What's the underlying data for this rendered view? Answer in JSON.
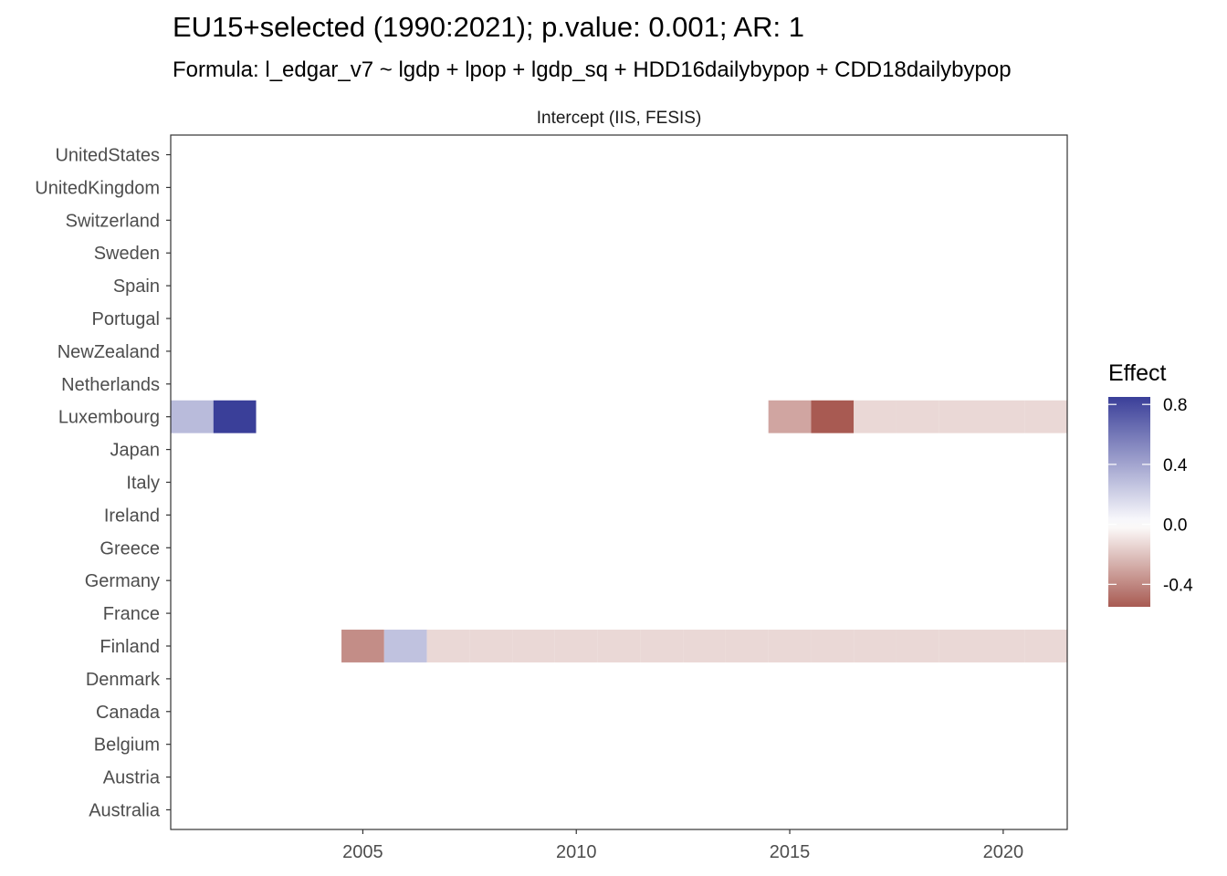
{
  "chart_data": {
    "type": "heatmap",
    "title": "EU15+selected (1990:2021); p.value: 0.001; AR: 1",
    "subtitle": "Formula: l_edgar_v7 ~ lgdp + lpop + lgdp_sq + HDD16dailybypop + CDD18dailybypop",
    "facet_label": "Intercept (IIS, FESIS)",
    "xlabel": "",
    "ylabel": "",
    "xlim": [
      2000.5,
      2021.5
    ],
    "x_ticks": [
      2005,
      2010,
      2015,
      2020
    ],
    "x_tick_labels": [
      "2005",
      "2010",
      "2015",
      "2020"
    ],
    "y_categories": [
      "Australia",
      "Austria",
      "Belgium",
      "Canada",
      "Denmark",
      "Finland",
      "France",
      "Germany",
      "Greece",
      "Ireland",
      "Italy",
      "Japan",
      "Luxembourg",
      "Netherlands",
      "NewZealand",
      "Portugal",
      "Spain",
      "Sweden",
      "Switzerland",
      "UnitedKingdom",
      "UnitedStates"
    ],
    "grid": false,
    "legend": {
      "title": "Effect",
      "placement": "right",
      "ticks": [
        0.8,
        0.4,
        0.0,
        -0.4
      ],
      "tick_labels": [
        "0.8",
        "0.4",
        "0.0",
        "-0.4"
      ],
      "range": [
        -0.55,
        0.85
      ],
      "colors": {
        "high": "#3a3f99",
        "mid": "#ffffff",
        "low": "#a85a52"
      }
    },
    "cells": [
      {
        "country": "Luxembourg",
        "year": 2001,
        "effect": 0.3
      },
      {
        "country": "Luxembourg",
        "year": 2002,
        "effect": 0.85
      },
      {
        "country": "Luxembourg",
        "year": 2015,
        "effect": -0.3
      },
      {
        "country": "Luxembourg",
        "year": 2016,
        "effect": -0.55
      },
      {
        "country": "Luxembourg",
        "year": 2017,
        "effect": -0.13
      },
      {
        "country": "Luxembourg",
        "year": 2018,
        "effect": -0.13
      },
      {
        "country": "Luxembourg",
        "year": 2019,
        "effect": -0.13
      },
      {
        "country": "Luxembourg",
        "year": 2020,
        "effect": -0.13
      },
      {
        "country": "Luxembourg",
        "year": 2021,
        "effect": -0.13
      },
      {
        "country": "Finland",
        "year": 2005,
        "effect": -0.38
      },
      {
        "country": "Finland",
        "year": 2006,
        "effect": 0.27
      },
      {
        "country": "Finland",
        "year": 2007,
        "effect": -0.13
      },
      {
        "country": "Finland",
        "year": 2008,
        "effect": -0.13
      },
      {
        "country": "Finland",
        "year": 2009,
        "effect": -0.13
      },
      {
        "country": "Finland",
        "year": 2010,
        "effect": -0.13
      },
      {
        "country": "Finland",
        "year": 2011,
        "effect": -0.13
      },
      {
        "country": "Finland",
        "year": 2012,
        "effect": -0.13
      },
      {
        "country": "Finland",
        "year": 2013,
        "effect": -0.13
      },
      {
        "country": "Finland",
        "year": 2014,
        "effect": -0.13
      },
      {
        "country": "Finland",
        "year": 2015,
        "effect": -0.13
      },
      {
        "country": "Finland",
        "year": 2016,
        "effect": -0.13
      },
      {
        "country": "Finland",
        "year": 2017,
        "effect": -0.13
      },
      {
        "country": "Finland",
        "year": 2018,
        "effect": -0.13
      },
      {
        "country": "Finland",
        "year": 2019,
        "effect": -0.13
      },
      {
        "country": "Finland",
        "year": 2020,
        "effect": -0.13
      },
      {
        "country": "Finland",
        "year": 2021,
        "effect": -0.13
      }
    ]
  }
}
